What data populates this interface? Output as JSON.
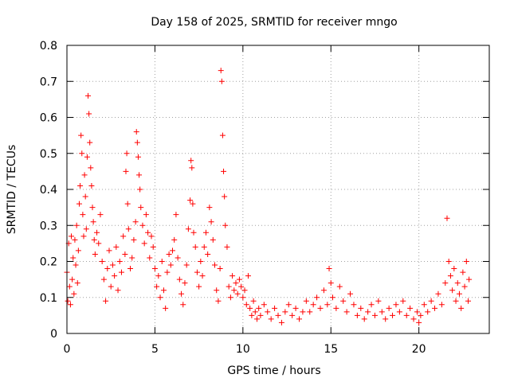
{
  "chart_data": {
    "type": "scatter",
    "title": "Day 158 of 2025, SRMTID for receiver mngo",
    "xlabel": "GPS time / hours",
    "ylabel": "SRMTID / TECUs",
    "xlim": [
      0,
      24
    ],
    "ylim": [
      0,
      0.8
    ],
    "xticks": [
      0,
      5,
      10,
      15,
      20
    ],
    "xtick_labels": [
      "0",
      "5",
      "10",
      "15",
      "20"
    ],
    "yticks": [
      0,
      0.1,
      0.2,
      0.3,
      0.4,
      0.5,
      0.6,
      0.7,
      0.8
    ],
    "ytick_labels": [
      "0",
      "0.1",
      "0.2",
      "0.3",
      "0.4",
      "0.5",
      "0.6",
      "0.7",
      "0.8"
    ],
    "grid": true,
    "marker": "+",
    "color": "#ff0000",
    "series": [
      {
        "name": "SRMTID",
        "points": [
          [
            0.0,
            0.17
          ],
          [
            0.05,
            0.09
          ],
          [
            0.1,
            0.25
          ],
          [
            0.15,
            0.13
          ],
          [
            0.2,
            0.08
          ],
          [
            0.25,
            0.27
          ],
          [
            0.3,
            0.15
          ],
          [
            0.35,
            0.21
          ],
          [
            0.4,
            0.11
          ],
          [
            0.45,
            0.26
          ],
          [
            0.5,
            0.19
          ],
          [
            0.55,
            0.3
          ],
          [
            0.6,
            0.14
          ],
          [
            0.65,
            0.23
          ],
          [
            0.7,
            0.36
          ],
          [
            0.75,
            0.41
          ],
          [
            0.8,
            0.55
          ],
          [
            0.85,
            0.5
          ],
          [
            0.9,
            0.33
          ],
          [
            0.95,
            0.27
          ],
          [
            1.0,
            0.44
          ],
          [
            1.05,
            0.38
          ],
          [
            1.1,
            0.29
          ],
          [
            1.15,
            0.49
          ],
          [
            1.2,
            0.66
          ],
          [
            1.25,
            0.61
          ],
          [
            1.3,
            0.53
          ],
          [
            1.35,
            0.46
          ],
          [
            1.4,
            0.41
          ],
          [
            1.45,
            0.35
          ],
          [
            1.5,
            0.31
          ],
          [
            1.55,
            0.26
          ],
          [
            1.6,
            0.22
          ],
          [
            1.7,
            0.28
          ],
          [
            1.8,
            0.25
          ],
          [
            1.9,
            0.33
          ],
          [
            2.0,
            0.2
          ],
          [
            2.1,
            0.15
          ],
          [
            2.2,
            0.09
          ],
          [
            2.3,
            0.18
          ],
          [
            2.4,
            0.23
          ],
          [
            2.5,
            0.13
          ],
          [
            2.6,
            0.19
          ],
          [
            2.7,
            0.16
          ],
          [
            2.8,
            0.24
          ],
          [
            2.9,
            0.12
          ],
          [
            3.0,
            0.2
          ],
          [
            3.1,
            0.17
          ],
          [
            3.2,
            0.27
          ],
          [
            3.3,
            0.22
          ],
          [
            3.35,
            0.45
          ],
          [
            3.4,
            0.5
          ],
          [
            3.45,
            0.36
          ],
          [
            3.5,
            0.29
          ],
          [
            3.6,
            0.18
          ],
          [
            3.7,
            0.21
          ],
          [
            3.8,
            0.26
          ],
          [
            3.9,
            0.31
          ],
          [
            3.95,
            0.56
          ],
          [
            4.0,
            0.53
          ],
          [
            4.05,
            0.49
          ],
          [
            4.1,
            0.44
          ],
          [
            4.15,
            0.4
          ],
          [
            4.2,
            0.35
          ],
          [
            4.3,
            0.3
          ],
          [
            4.4,
            0.25
          ],
          [
            4.5,
            0.33
          ],
          [
            4.6,
            0.28
          ],
          [
            4.7,
            0.21
          ],
          [
            4.8,
            0.27
          ],
          [
            4.9,
            0.24
          ],
          [
            5.0,
            0.18
          ],
          [
            5.1,
            0.13
          ],
          [
            5.2,
            0.16
          ],
          [
            5.3,
            0.1
          ],
          [
            5.4,
            0.2
          ],
          [
            5.5,
            0.12
          ],
          [
            5.6,
            0.07
          ],
          [
            5.7,
            0.17
          ],
          [
            5.8,
            0.22
          ],
          [
            5.9,
            0.19
          ],
          [
            6.0,
            0.23
          ],
          [
            6.1,
            0.26
          ],
          [
            6.2,
            0.33
          ],
          [
            6.3,
            0.21
          ],
          [
            6.4,
            0.15
          ],
          [
            6.5,
            0.11
          ],
          [
            6.6,
            0.08
          ],
          [
            6.7,
            0.14
          ],
          [
            6.8,
            0.19
          ],
          [
            6.9,
            0.29
          ],
          [
            7.0,
            0.37
          ],
          [
            7.05,
            0.48
          ],
          [
            7.1,
            0.46
          ],
          [
            7.15,
            0.36
          ],
          [
            7.2,
            0.28
          ],
          [
            7.3,
            0.24
          ],
          [
            7.4,
            0.17
          ],
          [
            7.5,
            0.13
          ],
          [
            7.6,
            0.2
          ],
          [
            7.7,
            0.16
          ],
          [
            7.8,
            0.24
          ],
          [
            7.9,
            0.28
          ],
          [
            8.0,
            0.22
          ],
          [
            8.1,
            0.35
          ],
          [
            8.2,
            0.31
          ],
          [
            8.3,
            0.26
          ],
          [
            8.4,
            0.19
          ],
          [
            8.5,
            0.12
          ],
          [
            8.6,
            0.09
          ],
          [
            8.7,
            0.18
          ],
          [
            8.75,
            0.73
          ],
          [
            8.8,
            0.7
          ],
          [
            8.85,
            0.55
          ],
          [
            8.9,
            0.45
          ],
          [
            8.95,
            0.38
          ],
          [
            9.0,
            0.3
          ],
          [
            9.1,
            0.24
          ],
          [
            9.2,
            0.13
          ],
          [
            9.3,
            0.1
          ],
          [
            9.4,
            0.16
          ],
          [
            9.5,
            0.12
          ],
          [
            9.6,
            0.14
          ],
          [
            9.7,
            0.11
          ],
          [
            9.8,
            0.15
          ],
          [
            9.9,
            0.13
          ],
          [
            10.0,
            0.1
          ],
          [
            10.1,
            0.12
          ],
          [
            10.2,
            0.08
          ],
          [
            10.3,
            0.16
          ],
          [
            10.4,
            0.07
          ],
          [
            10.5,
            0.05
          ],
          [
            10.6,
            0.09
          ],
          [
            10.7,
            0.06
          ],
          [
            10.8,
            0.04
          ],
          [
            10.9,
            0.07
          ],
          [
            11.0,
            0.05
          ],
          [
            11.2,
            0.08
          ],
          [
            11.4,
            0.06
          ],
          [
            11.6,
            0.04
          ],
          [
            11.8,
            0.07
          ],
          [
            12.0,
            0.05
          ],
          [
            12.2,
            0.03
          ],
          [
            12.4,
            0.06
          ],
          [
            12.6,
            0.08
          ],
          [
            12.8,
            0.05
          ],
          [
            13.0,
            0.07
          ],
          [
            13.2,
            0.04
          ],
          [
            13.4,
            0.06
          ],
          [
            13.6,
            0.09
          ],
          [
            13.8,
            0.06
          ],
          [
            14.0,
            0.08
          ],
          [
            14.2,
            0.1
          ],
          [
            14.4,
            0.07
          ],
          [
            14.6,
            0.12
          ],
          [
            14.8,
            0.08
          ],
          [
            14.9,
            0.18
          ],
          [
            15.0,
            0.14
          ],
          [
            15.1,
            0.1
          ],
          [
            15.3,
            0.07
          ],
          [
            15.5,
            0.13
          ],
          [
            15.7,
            0.09
          ],
          [
            15.9,
            0.06
          ],
          [
            16.1,
            0.11
          ],
          [
            16.3,
            0.08
          ],
          [
            16.5,
            0.05
          ],
          [
            16.7,
            0.07
          ],
          [
            16.9,
            0.04
          ],
          [
            17.1,
            0.06
          ],
          [
            17.3,
            0.08
          ],
          [
            17.5,
            0.05
          ],
          [
            17.7,
            0.09
          ],
          [
            17.9,
            0.06
          ],
          [
            18.1,
            0.04
          ],
          [
            18.3,
            0.07
          ],
          [
            18.5,
            0.05
          ],
          [
            18.7,
            0.08
          ],
          [
            18.9,
            0.06
          ],
          [
            19.1,
            0.09
          ],
          [
            19.3,
            0.05
          ],
          [
            19.5,
            0.07
          ],
          [
            19.7,
            0.04
          ],
          [
            19.9,
            0.06
          ],
          [
            20.0,
            0.03
          ],
          [
            20.1,
            0.05
          ],
          [
            20.3,
            0.08
          ],
          [
            20.5,
            0.06
          ],
          [
            20.7,
            0.09
          ],
          [
            20.9,
            0.07
          ],
          [
            21.1,
            0.11
          ],
          [
            21.3,
            0.08
          ],
          [
            21.5,
            0.14
          ],
          [
            21.6,
            0.32
          ],
          [
            21.7,
            0.2
          ],
          [
            21.8,
            0.16
          ],
          [
            21.9,
            0.12
          ],
          [
            22.0,
            0.18
          ],
          [
            22.1,
            0.09
          ],
          [
            22.2,
            0.14
          ],
          [
            22.3,
            0.11
          ],
          [
            22.4,
            0.07
          ],
          [
            22.5,
            0.17
          ],
          [
            22.6,
            0.13
          ],
          [
            22.7,
            0.2
          ],
          [
            22.8,
            0.09
          ],
          [
            22.85,
            0.15
          ]
        ]
      }
    ]
  }
}
